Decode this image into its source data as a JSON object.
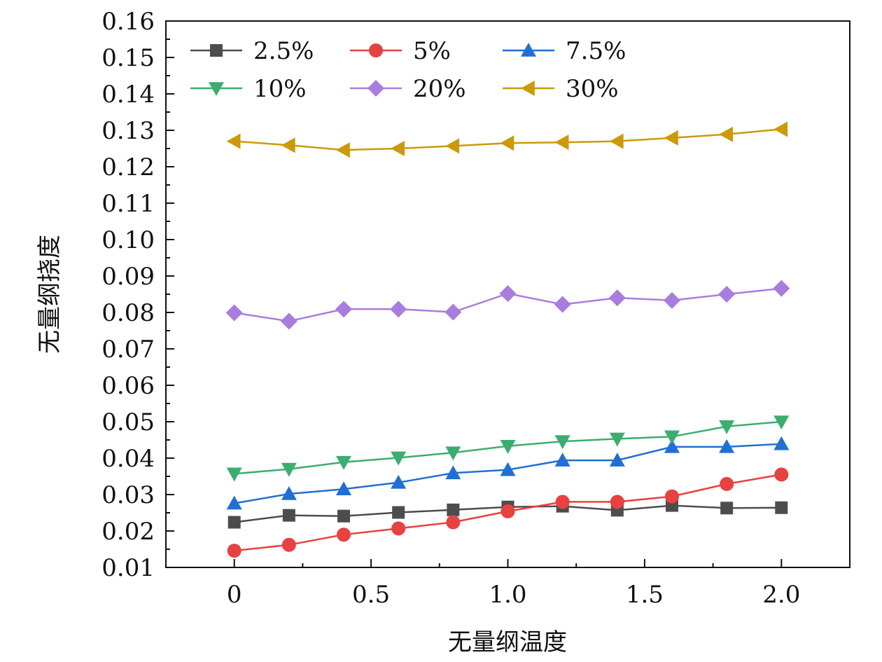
{
  "chart_data": {
    "type": "line",
    "xlabel": "无量纲温度",
    "ylabel": "无量纲挠度",
    "xlim": [
      -0.25,
      2.25
    ],
    "ylim": [
      0.01,
      0.16
    ],
    "x_ticks": [
      "0",
      "0.5",
      "1.0",
      "1.5",
      "2.0"
    ],
    "y_ticks": [
      "0.01",
      "0.02",
      "0.03",
      "0.04",
      "0.05",
      "0.06",
      "0.07",
      "0.08",
      "0.09",
      "0.10",
      "0.11",
      "0.12",
      "0.13",
      "0.14",
      "0.15",
      "0.16"
    ],
    "legend_position": "top-left",
    "x": [
      0,
      0.2,
      0.4,
      0.6,
      0.8,
      1.0,
      1.2,
      1.4,
      1.6,
      1.8,
      2.0
    ],
    "series": [
      {
        "name": "2.5%",
        "color": "#4d4d4d",
        "marker": "square",
        "values": [
          0.0224,
          0.0243,
          0.0241,
          0.0251,
          0.0258,
          0.0266,
          0.0268,
          0.0257,
          0.027,
          0.0263,
          0.0264
        ]
      },
      {
        "name": "5%",
        "color": "#e8413f",
        "marker": "circle",
        "values": [
          0.0146,
          0.0162,
          0.019,
          0.0207,
          0.0224,
          0.0254,
          0.028,
          0.028,
          0.0295,
          0.0329,
          0.0355
        ]
      },
      {
        "name": "7.5%",
        "color": "#1f6fd4",
        "marker": "triangle-up",
        "values": [
          0.0276,
          0.0302,
          0.0315,
          0.0333,
          0.0359,
          0.0368,
          0.0394,
          0.0394,
          0.0431,
          0.0431,
          0.0439
        ]
      },
      {
        "name": "10%",
        "color": "#3aae6e",
        "marker": "triangle-down",
        "values": [
          0.0357,
          0.037,
          0.0389,
          0.0401,
          0.0415,
          0.0433,
          0.0446,
          0.0453,
          0.0459,
          0.0487,
          0.05
        ]
      },
      {
        "name": "20%",
        "color": "#a97ce0",
        "marker": "diamond",
        "values": [
          0.0799,
          0.0776,
          0.0809,
          0.0809,
          0.0801,
          0.0852,
          0.0822,
          0.084,
          0.0833,
          0.085,
          0.0866
        ]
      },
      {
        "name": "30%",
        "color": "#cc9a06",
        "marker": "triangle-left",
        "values": [
          0.127,
          0.1259,
          0.1246,
          0.125,
          0.1257,
          0.1265,
          0.1267,
          0.127,
          0.1279,
          0.1289,
          0.1303
        ]
      }
    ]
  }
}
